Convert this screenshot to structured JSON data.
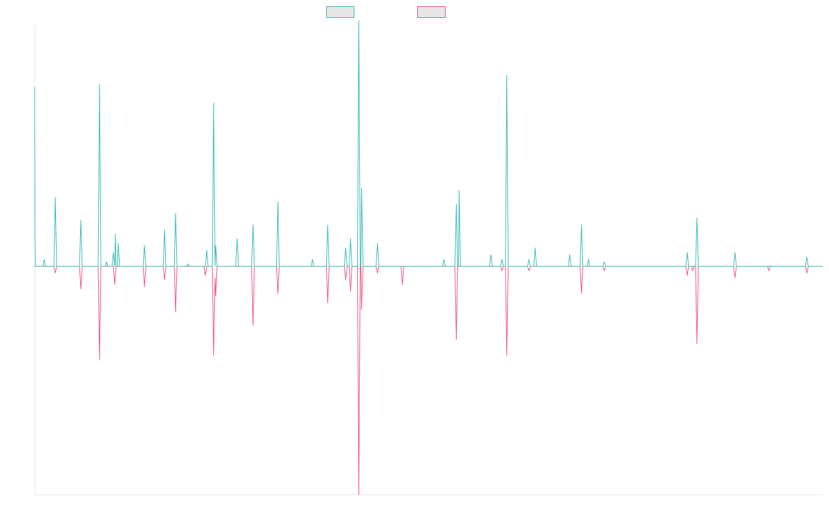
{
  "colors": {
    "up": "#3dbcb8",
    "down": "#f0577f",
    "axis": "#e6e6e6",
    "legend_fill": "#e6e6e6"
  },
  "legend": {
    "placement": "top-center",
    "items": [
      {
        "label": "",
        "color_key": "up"
      },
      {
        "label": "",
        "color_key": "down"
      }
    ]
  },
  "chart_data": {
    "type": "line",
    "title": "",
    "xlabel": "",
    "ylabel": "",
    "grid": false,
    "ylim": [
      -100,
      105
    ],
    "xlim": [
      0,
      1140
    ],
    "series": [
      {
        "color_key": "up",
        "points": [
          [
            0,
            78
          ],
          [
            1,
            0
          ],
          [
            12,
            0
          ],
          [
            14,
            3
          ],
          [
            16,
            0
          ],
          [
            28,
            0
          ],
          [
            30,
            30
          ],
          [
            32,
            0
          ],
          [
            65,
            0
          ],
          [
            67,
            20
          ],
          [
            69,
            0
          ],
          [
            92,
            0
          ],
          [
            94,
            79
          ],
          [
            96,
            0
          ],
          [
            102,
            0
          ],
          [
            104,
            2
          ],
          [
            106,
            0
          ],
          [
            112,
            0
          ],
          [
            114,
            6
          ],
          [
            116,
            0
          ],
          [
            117,
            14
          ],
          [
            118,
            0
          ],
          [
            120,
            0
          ],
          [
            121,
            10
          ],
          [
            123,
            0
          ],
          [
            157,
            0
          ],
          [
            159,
            9
          ],
          [
            161,
            0
          ],
          [
            186,
            0
          ],
          [
            188,
            16
          ],
          [
            190,
            0
          ],
          [
            202,
            0
          ],
          [
            204,
            23
          ],
          [
            206,
            0
          ],
          [
            220,
            0
          ],
          [
            222,
            1
          ],
          [
            224,
            0
          ],
          [
            247,
            0
          ],
          [
            249,
            7
          ],
          [
            251,
            0
          ],
          [
            257,
            0
          ],
          [
            259,
            71
          ],
          [
            261,
            0
          ],
          [
            262,
            9
          ],
          [
            264,
            0
          ],
          [
            291,
            0
          ],
          [
            293,
            12
          ],
          [
            295,
            0
          ],
          [
            314,
            0
          ],
          [
            316,
            18
          ],
          [
            318,
            0
          ],
          [
            350,
            0
          ],
          [
            352,
            28
          ],
          [
            354,
            0
          ],
          [
            400,
            0
          ],
          [
            402,
            3
          ],
          [
            404,
            0
          ],
          [
            422,
            0
          ],
          [
            424,
            18
          ],
          [
            426,
            0
          ],
          [
            448,
            0
          ],
          [
            450,
            8
          ],
          [
            452,
            0
          ],
          [
            455,
            0
          ],
          [
            457,
            12
          ],
          [
            459,
            0
          ],
          [
            467,
            0
          ],
          [
            469,
            107
          ],
          [
            471,
            0
          ],
          [
            472,
            0
          ],
          [
            473,
            34
          ],
          [
            475,
            0
          ],
          [
            494,
            0
          ],
          [
            496,
            10
          ],
          [
            498,
            0
          ],
          [
            590,
            0
          ],
          [
            592,
            3
          ],
          [
            594,
            0
          ],
          [
            608,
            0
          ],
          [
            610,
            27
          ],
          [
            612,
            0
          ],
          [
            613,
            0
          ],
          [
            614,
            33
          ],
          [
            616,
            0
          ],
          [
            658,
            0
          ],
          [
            660,
            5
          ],
          [
            662,
            0
          ],
          [
            674,
            0
          ],
          [
            676,
            3
          ],
          [
            678,
            0
          ],
          [
            681,
            0
          ],
          [
            683,
            83
          ],
          [
            685,
            0
          ],
          [
            713,
            0
          ],
          [
            715,
            3
          ],
          [
            717,
            0
          ],
          [
            722,
            0
          ],
          [
            724,
            8
          ],
          [
            726,
            0
          ],
          [
            772,
            0
          ],
          [
            774,
            5
          ],
          [
            776,
            0
          ],
          [
            789,
            0
          ],
          [
            791,
            18
          ],
          [
            793,
            0
          ],
          [
            799,
            0
          ],
          [
            801,
            3
          ],
          [
            803,
            0
          ],
          [
            822,
            0
          ],
          [
            824,
            2
          ],
          [
            826,
            0
          ],
          [
            942,
            0
          ],
          [
            944,
            6
          ],
          [
            946,
            0
          ],
          [
            956,
            0
          ],
          [
            958,
            21
          ],
          [
            960,
            0
          ],
          [
            1011,
            0
          ],
          [
            1013,
            6
          ],
          [
            1015,
            0
          ],
          [
            1115,
            0
          ],
          [
            1117,
            4
          ],
          [
            1119,
            0
          ],
          [
            1140,
            0
          ]
        ]
      },
      {
        "color_key": "down",
        "points": [
          [
            0,
            0
          ],
          [
            28,
            0
          ],
          [
            30,
            -3
          ],
          [
            32,
            0
          ],
          [
            65,
            0
          ],
          [
            67,
            -10
          ],
          [
            69,
            0
          ],
          [
            92,
            0
          ],
          [
            94,
            -41
          ],
          [
            96,
            0
          ],
          [
            114,
            0
          ],
          [
            116,
            -8
          ],
          [
            118,
            0
          ],
          [
            157,
            0
          ],
          [
            159,
            -9
          ],
          [
            161,
            0
          ],
          [
            186,
            0
          ],
          [
            188,
            -6
          ],
          [
            190,
            0
          ],
          [
            202,
            0
          ],
          [
            204,
            -20
          ],
          [
            206,
            0
          ],
          [
            245,
            0
          ],
          [
            247,
            -4
          ],
          [
            249,
            0
          ],
          [
            257,
            0
          ],
          [
            259,
            -39
          ],
          [
            261,
            -5
          ],
          [
            262,
            -13
          ],
          [
            264,
            0
          ],
          [
            314,
            0
          ],
          [
            316,
            -26
          ],
          [
            318,
            0
          ],
          [
            350,
            0
          ],
          [
            352,
            -12
          ],
          [
            354,
            0
          ],
          [
            422,
            0
          ],
          [
            424,
            -16
          ],
          [
            426,
            0
          ],
          [
            448,
            0
          ],
          [
            450,
            -6
          ],
          [
            452,
            0
          ],
          [
            455,
            0
          ],
          [
            457,
            -11
          ],
          [
            459,
            0
          ],
          [
            467,
            0
          ],
          [
            469,
            -100
          ],
          [
            471,
            0
          ],
          [
            472,
            0
          ],
          [
            473,
            -19
          ],
          [
            475,
            0
          ],
          [
            494,
            0
          ],
          [
            496,
            -3
          ],
          [
            498,
            0
          ],
          [
            530,
            0
          ],
          [
            532,
            -8
          ],
          [
            534,
            0
          ],
          [
            608,
            0
          ],
          [
            610,
            -32
          ],
          [
            612,
            0
          ],
          [
            674,
            0
          ],
          [
            676,
            -2
          ],
          [
            678,
            0
          ],
          [
            681,
            0
          ],
          [
            683,
            -39
          ],
          [
            685,
            0
          ],
          [
            713,
            0
          ],
          [
            715,
            -2
          ],
          [
            717,
            0
          ],
          [
            789,
            0
          ],
          [
            791,
            -12
          ],
          [
            793,
            0
          ],
          [
            822,
            0
          ],
          [
            824,
            -2
          ],
          [
            826,
            0
          ],
          [
            942,
            0
          ],
          [
            944,
            -4
          ],
          [
            946,
            0
          ],
          [
            950,
            0
          ],
          [
            952,
            -2
          ],
          [
            954,
            0
          ],
          [
            956,
            0
          ],
          [
            958,
            -34
          ],
          [
            960,
            0
          ],
          [
            1011,
            0
          ],
          [
            1013,
            -5
          ],
          [
            1015,
            0
          ],
          [
            1060,
            0
          ],
          [
            1062,
            -2
          ],
          [
            1064,
            0
          ],
          [
            1115,
            0
          ],
          [
            1117,
            -3
          ],
          [
            1119,
            0
          ],
          [
            1140,
            0
          ]
        ]
      }
    ]
  }
}
